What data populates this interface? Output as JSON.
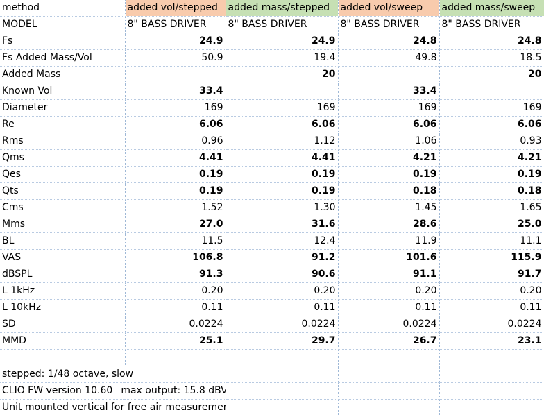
{
  "header": {
    "label": "method",
    "columns": [
      {
        "label": "added vol/stepped",
        "color": "#f8cbad"
      },
      {
        "label": "added mass/stepped",
        "color": "#c6e0b4"
      },
      {
        "label": "added vol/sweep",
        "color": "#f8cbad"
      },
      {
        "label": "added mass/sweep",
        "color": "#c6e0b4"
      }
    ]
  },
  "rows": [
    {
      "label": "MODEL",
      "bold": false,
      "text": true,
      "values": [
        "8\" BASS DRIVER",
        "8\" BASS DRIVER",
        "8\" BASS DRIVER",
        "8\" BASS DRIVER"
      ]
    },
    {
      "label": "Fs",
      "bold": true,
      "values": [
        "24.9",
        "24.9",
        "24.8",
        "24.8"
      ]
    },
    {
      "label": "Fs Added Mass/Vol",
      "bold": false,
      "values": [
        "50.9",
        "19.4",
        "49.8",
        "18.5"
      ]
    },
    {
      "label": "Added Mass",
      "bold": true,
      "values": [
        "",
        "20",
        "",
        "20"
      ]
    },
    {
      "label": "Known Vol",
      "bold": true,
      "values": [
        "33.4",
        "",
        "33.4",
        ""
      ]
    },
    {
      "label": "Diameter",
      "bold": false,
      "values": [
        "169",
        "169",
        "169",
        "169"
      ]
    },
    {
      "label": "Re",
      "bold": true,
      "values": [
        "6.06",
        "6.06",
        "6.06",
        "6.06"
      ]
    },
    {
      "label": "Rms",
      "bold": false,
      "values": [
        "0.96",
        "1.12",
        "1.06",
        "0.93"
      ]
    },
    {
      "label": "Qms",
      "bold": true,
      "values": [
        "4.41",
        "4.41",
        "4.21",
        "4.21"
      ]
    },
    {
      "label": "Qes",
      "bold": true,
      "values": [
        "0.19",
        "0.19",
        "0.19",
        "0.19"
      ]
    },
    {
      "label": "Qts",
      "bold": true,
      "values": [
        "0.19",
        "0.19",
        "0.18",
        "0.18"
      ]
    },
    {
      "label": "Cms",
      "bold": false,
      "values": [
        "1.52",
        "1.30",
        "1.45",
        "1.65"
      ]
    },
    {
      "label": "Mms",
      "bold": true,
      "values": [
        "27.0",
        "31.6",
        "28.6",
        "25.0"
      ]
    },
    {
      "label": "BL",
      "bold": false,
      "values": [
        "11.5",
        "12.4",
        "11.9",
        "11.1"
      ]
    },
    {
      "label": "VAS",
      "bold": true,
      "values": [
        "106.8",
        "91.2",
        "101.6",
        "115.9"
      ]
    },
    {
      "label": "dBSPL",
      "bold": true,
      "values": [
        "91.3",
        "90.6",
        "91.1",
        "91.7"
      ]
    },
    {
      "label": "L 1kHz",
      "bold": false,
      "values": [
        "0.20",
        "0.20",
        "0.20",
        "0.20"
      ]
    },
    {
      "label": "L 10kHz",
      "bold": false,
      "values": [
        "0.11",
        "0.11",
        "0.11",
        "0.11"
      ]
    },
    {
      "label": "SD",
      "bold": false,
      "values": [
        "0.0224",
        "0.0224",
        "0.0224",
        "0.0224"
      ]
    },
    {
      "label": "MMD",
      "bold": true,
      "values": [
        "25.1",
        "29.7",
        "26.7",
        "23.1"
      ]
    }
  ],
  "notes": {
    "stepped": "stepped: 1/48 octave, slow",
    "clio_version": "CLIO FW version 10.60",
    "max_output": "max output: 15.8 dBV",
    "mounting": "Unit mounted vertical for free air measurements"
  }
}
